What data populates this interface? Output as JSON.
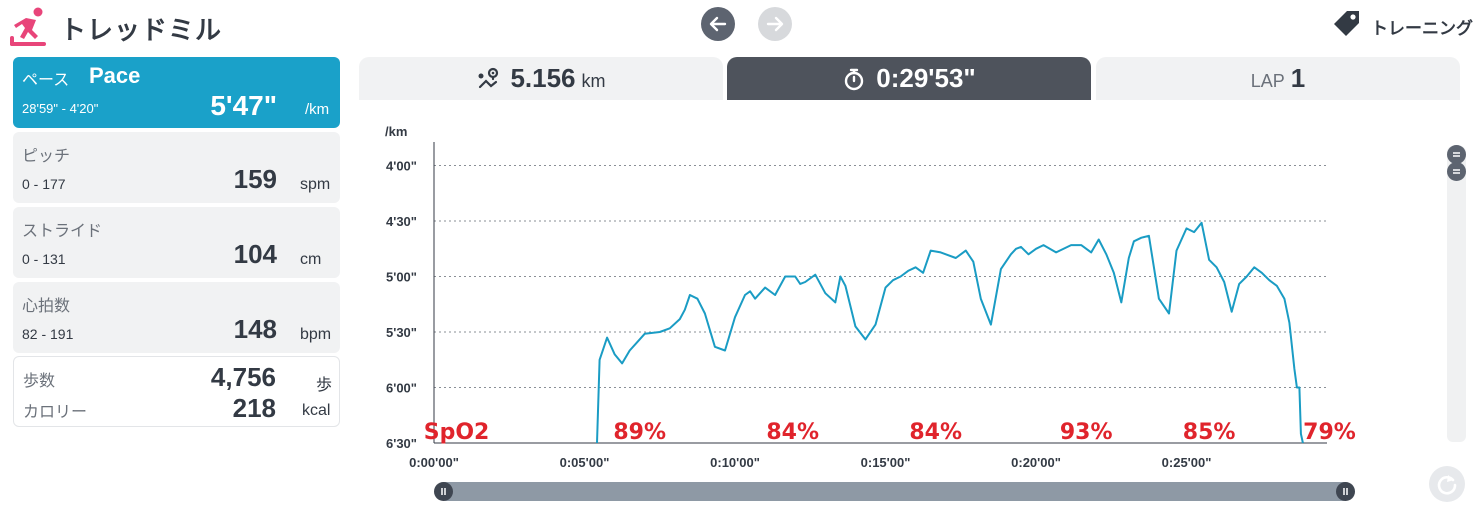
{
  "header": {
    "app_title": "トレッドミル",
    "logo_icon": "treadmill-runner-icon",
    "logo_color": "#e8457a",
    "back_icon": "arrow-left-icon",
    "forward_icon": "arrow-right-icon",
    "training_icon": "tag-icon",
    "training_label": "トレーニング"
  },
  "metrics": {
    "pace": {
      "label": "ペース",
      "label_en": "Pace",
      "range": "28'59\" - 4'20\"",
      "value": "5'47\"",
      "unit": "/km",
      "color": "#1aa1c9"
    },
    "pitch": {
      "label": "ピッチ",
      "range": "0 - 177",
      "value": "159",
      "unit": "spm"
    },
    "stride": {
      "label": "ストライド",
      "range": "0 - 131",
      "value": "104",
      "unit": "cm"
    },
    "heart_rate": {
      "label": "心拍数",
      "range": "82 - 191",
      "value": "148",
      "unit": "bpm"
    }
  },
  "summary": {
    "steps_label": "歩数",
    "steps_value": "4,756",
    "steps_unit": "歩",
    "calories_label": "カロリー",
    "calories_value": "218",
    "calories_unit": "kcal"
  },
  "tabs": {
    "distance": {
      "icon": "route-icon",
      "value": "5.156",
      "unit": "km"
    },
    "time": {
      "icon": "stopwatch-icon",
      "value": "0:29'53\""
    },
    "lap": {
      "label": "LAP",
      "value": "1"
    }
  },
  "chart_data": {
    "type": "line",
    "ylabel": "/km",
    "y_ticks": [
      "4'00\"",
      "4'30\"",
      "5'00\"",
      "5'30\"",
      "6'00\"",
      "6'30\""
    ],
    "y_tick_seconds": [
      240,
      270,
      300,
      330,
      360,
      390
    ],
    "ylim_seconds": [
      230,
      390
    ],
    "y_inverted": true,
    "x_ticks": [
      "0:00'00\"",
      "0:05'00\"",
      "0:10'00\"",
      "0:15'00\"",
      "0:20'00\"",
      "0:25'00\""
    ],
    "x_tick_seconds": [
      0,
      300,
      600,
      900,
      1200,
      1500
    ],
    "xlim_seconds": [
      0,
      1780
    ],
    "grid": "horizontal-dotted",
    "line_color": "#1a9cc4",
    "series": [
      {
        "x": [
          325,
          330,
          345,
          360,
          375,
          390,
          420,
          450,
          470,
          490,
          500,
          510,
          525,
          540,
          560,
          580,
          600,
          620,
          630,
          640,
          660,
          680,
          700,
          720,
          730,
          740,
          760,
          780,
          800,
          810,
          820,
          840,
          860,
          880,
          900,
          915,
          930,
          945,
          960,
          975,
          990,
          1010,
          1040,
          1060,
          1075,
          1090,
          1110,
          1130,
          1150,
          1160,
          1170,
          1185,
          1200,
          1215,
          1240,
          1270,
          1290,
          1310,
          1325,
          1340,
          1355,
          1370,
          1385,
          1395,
          1410,
          1425,
          1445,
          1465,
          1480,
          1500,
          1515,
          1530,
          1545,
          1560,
          1575,
          1590,
          1605,
          1620,
          1635,
          1650,
          1665,
          1680,
          1695,
          1705,
          1715,
          1720,
          1725,
          1728,
          1732
        ],
        "y": [
          390,
          345,
          333,
          342,
          347,
          340,
          331,
          330,
          328,
          323,
          318,
          310,
          312,
          320,
          338,
          340,
          322,
          310,
          308,
          312,
          306,
          310,
          300,
          300,
          304,
          303,
          299,
          309,
          314,
          300,
          305,
          327,
          334,
          326,
          306,
          302,
          300,
          297,
          295,
          298,
          286,
          287,
          290,
          286,
          292,
          312,
          326,
          296,
          288,
          285,
          284,
          288,
          285,
          283,
          287,
          283,
          283,
          287,
          280,
          288,
          298,
          314,
          290,
          281,
          279,
          278,
          312,
          320,
          286,
          274,
          276,
          271,
          291,
          295,
          303,
          319,
          304,
          300,
          295,
          298,
          302,
          305,
          312,
          325,
          350,
          360,
          360,
          385,
          390
        ]
      }
    ],
    "annotations": [
      {
        "text": "SpO2",
        "x_seconds": 45
      },
      {
        "text": "89%",
        "x_seconds": 410
      },
      {
        "text": "84%",
        "x_seconds": 715
      },
      {
        "text": "84%",
        "x_seconds": 1000
      },
      {
        "text": "93%",
        "x_seconds": 1300
      },
      {
        "text": "85%",
        "x_seconds": 1545
      },
      {
        "text": "79%",
        "x_seconds": 1785
      }
    ],
    "annotation_color": "#e0242c"
  },
  "controls": {
    "vertical_scroll_icon": "drag-handle-icon",
    "horizontal_scroll_icon": "pause-handle-icon",
    "reset_icon": "reset-icon"
  }
}
